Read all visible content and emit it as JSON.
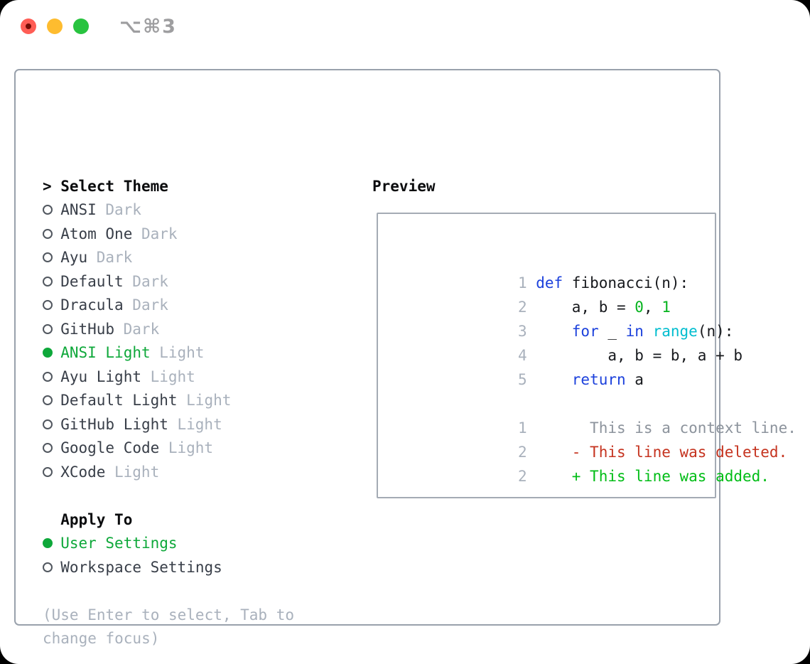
{
  "titlebar": {
    "shortcut": "⌥⌘3"
  },
  "palette": {
    "fg": "#17191D",
    "heading": "#0B0C0E",
    "name": "#383E48",
    "dim": "#A9B1BC",
    "context": "#8C939C",
    "ring": "#51575F",
    "green": "#0EA83A",
    "code_green": "#06B31E",
    "added": "#00BD16",
    "keyword": "#1C41DC",
    "cyan": "#00BDCF",
    "red": "#C5331F",
    "border_outer": "#99A1AC",
    "border_inner": "#A4ABB4",
    "titlebar_gray": "#9E9EA0",
    "light_red": "#FF5D55",
    "light_red_dot": "#750D06",
    "light_yellow": "#FEBC2F",
    "light_green": "#28C33F"
  },
  "theme_panel": {
    "cursor": ">",
    "title": "Select Theme",
    "items": [
      {
        "name": "ANSI",
        "variant": "Dark",
        "selected": false
      },
      {
        "name": "Atom One",
        "variant": "Dark",
        "selected": false
      },
      {
        "name": "Ayu",
        "variant": "Dark",
        "selected": false
      },
      {
        "name": "Default",
        "variant": "Dark",
        "selected": false
      },
      {
        "name": "Dracula",
        "variant": "Dark",
        "selected": false
      },
      {
        "name": "GitHub",
        "variant": "Dark",
        "selected": false
      },
      {
        "name": "ANSI Light",
        "variant": "Light",
        "selected": true
      },
      {
        "name": "Ayu Light",
        "variant": "Light",
        "selected": false
      },
      {
        "name": "Default Light",
        "variant": "Light",
        "selected": false
      },
      {
        "name": "GitHub Light",
        "variant": "Light",
        "selected": false
      },
      {
        "name": "Google Code",
        "variant": "Light",
        "selected": false
      },
      {
        "name": "XCode",
        "variant": "Light",
        "selected": false
      }
    ],
    "apply_to": {
      "title": "Apply To",
      "options": [
        {
          "label": "User Settings",
          "selected": true
        },
        {
          "label": "Workspace Settings",
          "selected": false
        }
      ]
    },
    "help": [
      "(Use Enter to select, Tab to",
      "change focus)"
    ]
  },
  "preview": {
    "title": "Preview",
    "lines": [
      {
        "num": "1",
        "segments": [
          {
            "t": "def",
            "c": "keyword"
          },
          {
            "t": " fibonacci(n):",
            "c": "fg"
          }
        ]
      },
      {
        "num": "2",
        "segments": [
          {
            "t": "    a, b = ",
            "c": "fg"
          },
          {
            "t": "0",
            "c": "code_green"
          },
          {
            "t": ", ",
            "c": "fg"
          },
          {
            "t": "1",
            "c": "code_green"
          }
        ]
      },
      {
        "num": "3",
        "segments": [
          {
            "t": "    ",
            "c": "fg"
          },
          {
            "t": "for",
            "c": "keyword"
          },
          {
            "t": " _ ",
            "c": "fg"
          },
          {
            "t": "in",
            "c": "keyword"
          },
          {
            "t": " ",
            "c": "fg"
          },
          {
            "t": "range",
            "c": "cyan"
          },
          {
            "t": "(n):",
            "c": "fg"
          }
        ]
      },
      {
        "num": "4",
        "segments": [
          {
            "t": "        a, b = b, a + b",
            "c": "fg"
          }
        ]
      },
      {
        "num": "5",
        "segments": [
          {
            "t": "    ",
            "c": "fg"
          },
          {
            "t": "return",
            "c": "keyword"
          },
          {
            "t": " a",
            "c": "fg"
          }
        ]
      },
      {
        "num": "",
        "segments": []
      },
      {
        "num": "1",
        "segments": [
          {
            "t": "      This is a context line.",
            "c": "context"
          }
        ]
      },
      {
        "num": "2",
        "segments": [
          {
            "t": "    - This line was deleted.",
            "c": "red"
          }
        ]
      },
      {
        "num": "2",
        "segments": [
          {
            "t": "    + This line was added.",
            "c": "added"
          }
        ]
      }
    ]
  }
}
